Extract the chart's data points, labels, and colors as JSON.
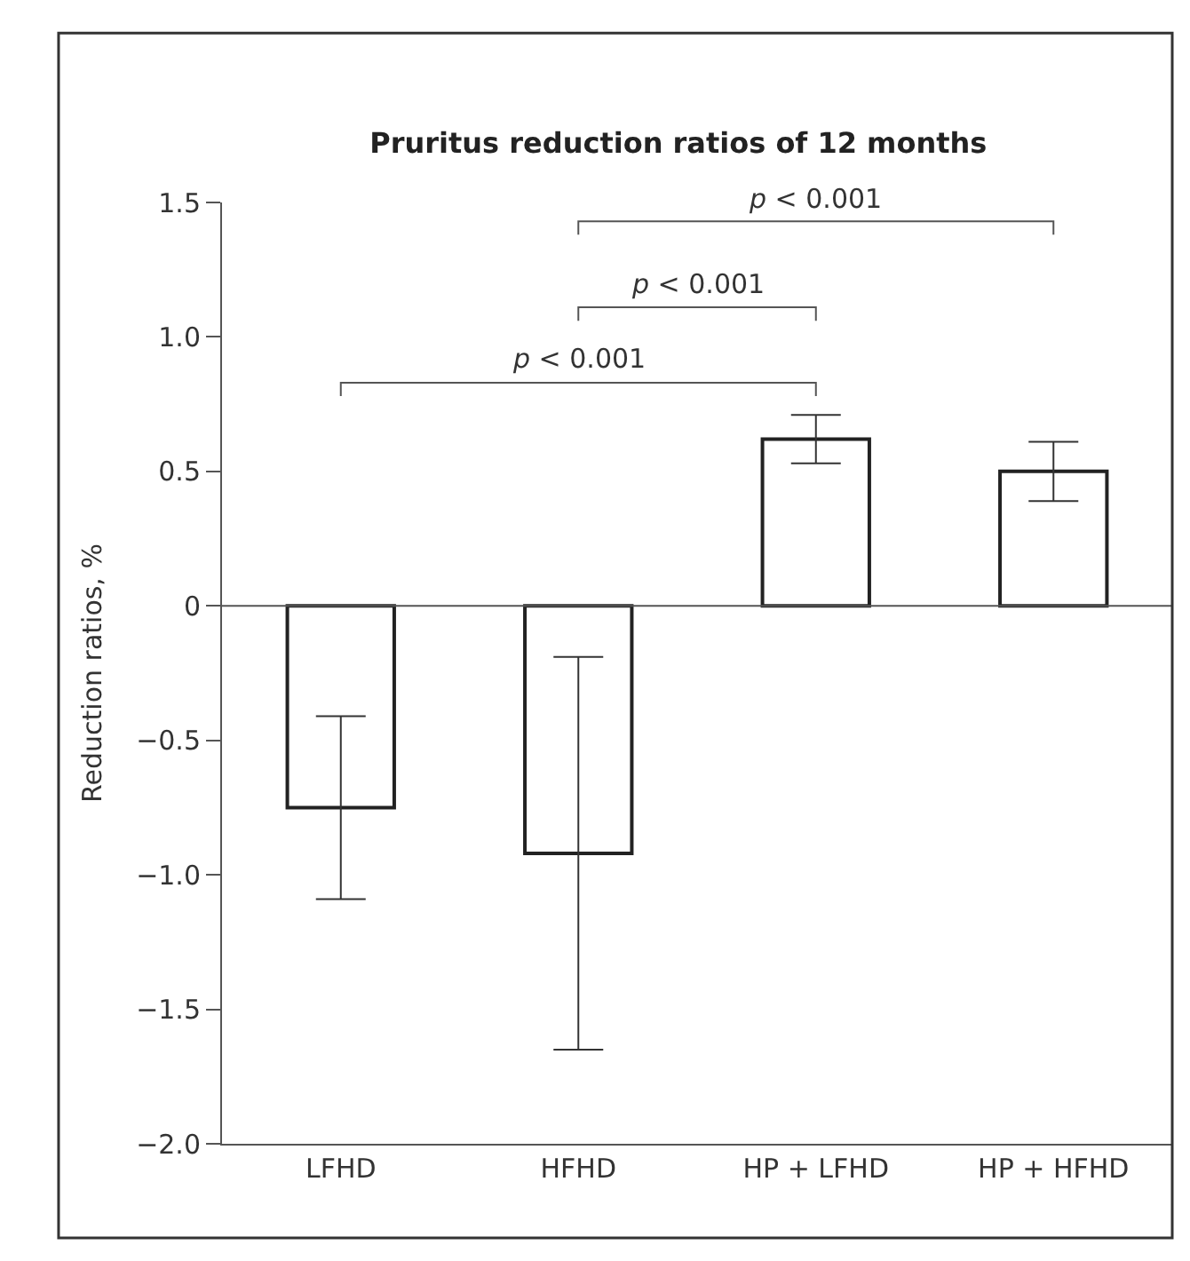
{
  "chart_data": {
    "type": "bar",
    "title": "Pruritus reduction ratios of 12 months",
    "ylabel": "Reduction ratios, %",
    "categories": [
      "LFHD",
      "HFHD",
      "HP + LFHD",
      "HP + HFHD"
    ],
    "values": [
      -0.75,
      -0.92,
      0.62,
      0.5
    ],
    "errors": [
      0.34,
      0.73,
      0.09,
      0.11
    ],
    "color": "#ffffff",
    "ylim": [
      -2.0,
      1.5
    ],
    "yticks": [
      {
        "value": -2.0,
        "label": "−2.0"
      },
      {
        "value": -1.5,
        "label": "−1.5"
      },
      {
        "value": -1.0,
        "label": "−1.0"
      },
      {
        "value": -0.5,
        "label": "−0.5"
      },
      0,
      0.5,
      {
        "value": 1.0,
        "label": "1.0"
      },
      1.5
    ],
    "ref_lines": [
      {
        "axis": "y",
        "value": 0,
        "color": "#555555"
      }
    ],
    "annotations": [
      "p < 0.001",
      "p < 0.001",
      "p < 0.001"
    ],
    "legend": false
  }
}
